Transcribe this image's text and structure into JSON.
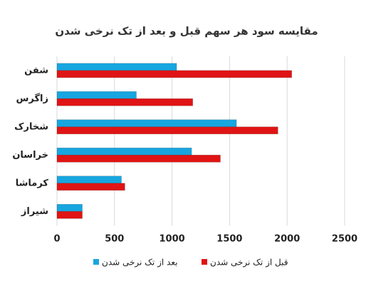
{
  "chart_data": {
    "type": "hbar",
    "title": "مقایسه سود هر سهم قبل و بعد از تک نرخی شدن",
    "categories": [
      "شفن",
      "زاگرس",
      "شخارک",
      "خراسان",
      "کرماشا",
      "شیراز"
    ],
    "series": [
      {
        "name": "بعد از تک نرخی شدن",
        "color": "#17a6e0",
        "values": [
          1040,
          690,
          1560,
          1170,
          560,
          220
        ]
      },
      {
        "name": "قبل از تک نرخی شدن",
        "color": "#e01414",
        "values": [
          2040,
          1180,
          1920,
          1420,
          590,
          220
        ]
      }
    ],
    "xlim": [
      0,
      2500
    ],
    "xticks": [
      0,
      500,
      1000,
      1500,
      2000,
      2500
    ],
    "grid": true,
    "legend": "bottom"
  }
}
